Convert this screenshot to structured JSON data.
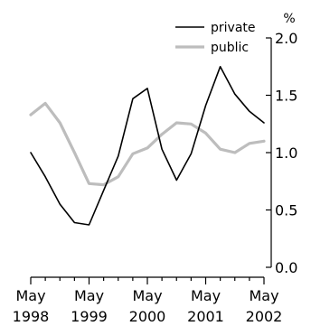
{
  "chart_data": {
    "type": "line",
    "title": "",
    "xlabel": "",
    "ylabel": "%",
    "x": [
      "1998-05",
      "1998-08",
      "1998-11",
      "1999-02",
      "1999-05",
      "1999-08",
      "1999-11",
      "2000-02",
      "2000-05",
      "2000-08",
      "2000-11",
      "2001-02",
      "2001-05",
      "2001-08",
      "2001-11",
      "2002-02",
      "2002-05"
    ],
    "x_ticks": [
      "May 1998",
      "May 1999",
      "May 2000",
      "May 2001",
      "May 2002"
    ],
    "x_tick_lines": [
      [
        "May",
        "1998"
      ],
      [
        "May",
        "1999"
      ],
      [
        "May",
        "2000"
      ],
      [
        "May",
        "2001"
      ],
      [
        "May",
        "2002"
      ]
    ],
    "ylim": [
      0,
      2.0
    ],
    "y_ticks": [
      "0.0",
      "0.5",
      "1.0",
      "1.5",
      "2.0"
    ],
    "grid": false,
    "legend_position": "top-right",
    "series": [
      {
        "name": "private",
        "color": "#000000",
        "values": [
          1.0,
          0.79,
          0.55,
          0.39,
          0.37,
          0.67,
          0.97,
          1.47,
          1.56,
          1.03,
          0.76,
          0.99,
          1.41,
          1.75,
          1.51,
          1.36,
          1.26
        ]
      },
      {
        "name": "public",
        "color": "#bdbdbd",
        "values": [
          1.33,
          1.43,
          1.26,
          1.0,
          0.73,
          0.72,
          0.79,
          0.99,
          1.04,
          1.16,
          1.26,
          1.25,
          1.17,
          1.03,
          1.0,
          1.08,
          1.1
        ]
      }
    ]
  }
}
